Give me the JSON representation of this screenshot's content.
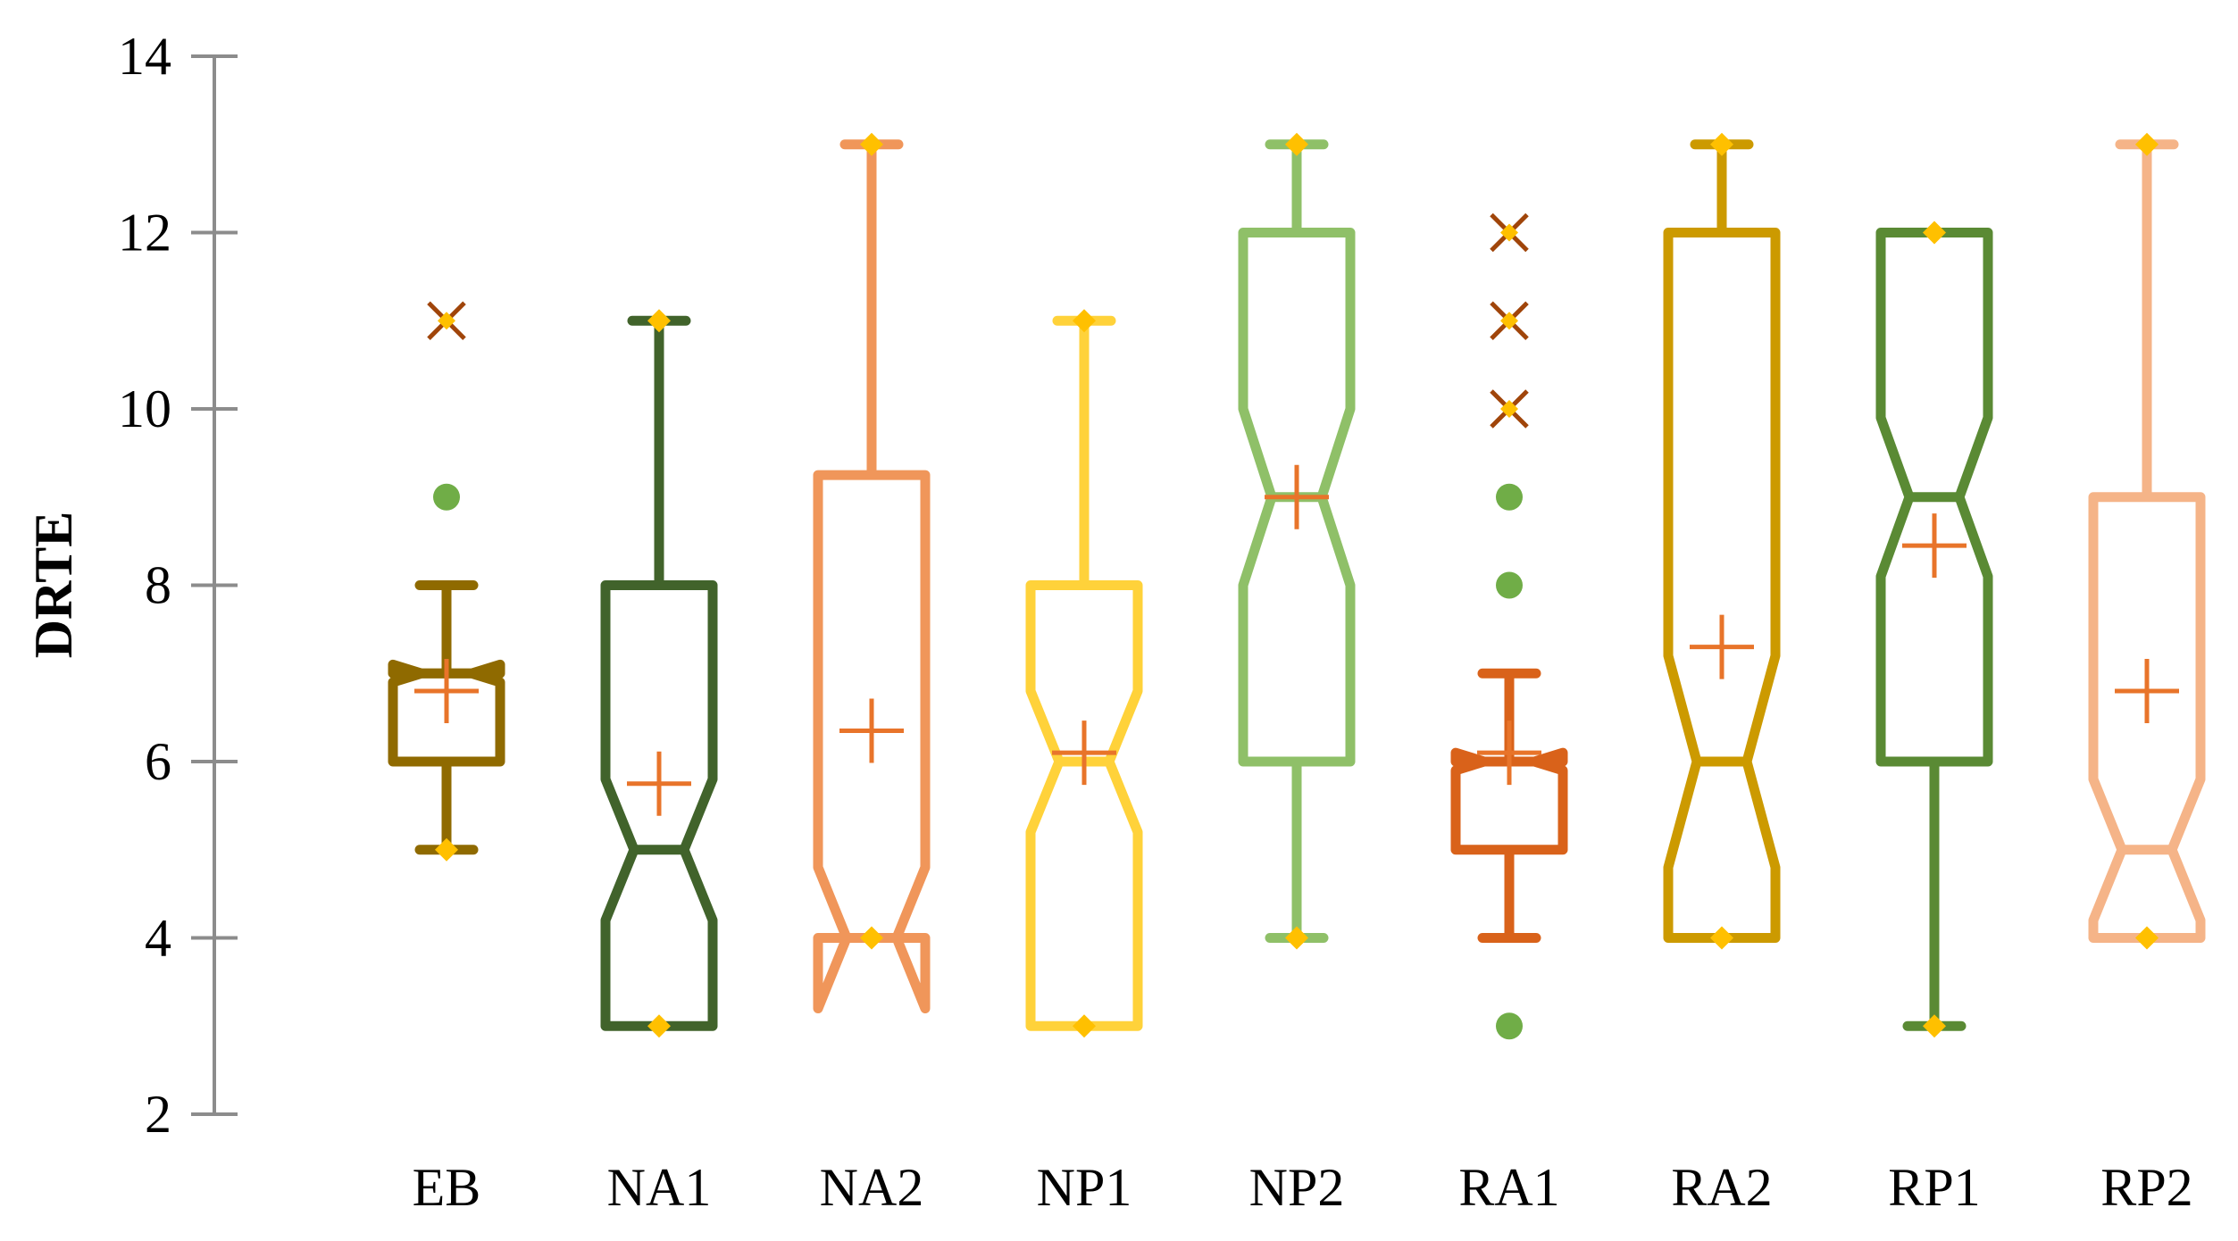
{
  "chart_data": {
    "type": "box",
    "title": "",
    "xlabel": "",
    "ylabel": "DRTE",
    "ylim": [
      2,
      14
    ],
    "yticks": [
      2,
      4,
      6,
      8,
      10,
      12,
      14
    ],
    "grid": false,
    "legend": "none",
    "mean_color": "#E8742A",
    "extreme_marker_color": "#FFC000",
    "outlier_x_color": "#A0450A",
    "outlier_dot_color": "#70AD47",
    "categories": [
      "EB",
      "NA1",
      "NA2",
      "NP1",
      "NP2",
      "RA1",
      "RA2",
      "RP1",
      "RP2"
    ],
    "boxes": [
      {
        "name": "EB",
        "color": "#8F6A00",
        "min": 5,
        "q1": 6,
        "median": 7,
        "q3": 7,
        "max": 8,
        "mean": 6.8,
        "notch_low": 6.9,
        "notch_high": 7.1,
        "extremes": [
          5
        ],
        "outliers_x": [
          11
        ],
        "outliers_dot": [
          9
        ]
      },
      {
        "name": "NA1",
        "color": "#41632B",
        "min": 3,
        "q1": 3,
        "median": 5,
        "q3": 8,
        "max": 11,
        "mean": 5.75,
        "notch_low": 4.2,
        "notch_high": 5.8,
        "extremes": [
          3,
          11
        ],
        "outliers_x": [],
        "outliers_dot": []
      },
      {
        "name": "NA2",
        "color": "#F0965A",
        "min": 4,
        "q1": 4,
        "median": 4,
        "q3": 9.25,
        "max": 13,
        "mean": 6.35,
        "notch_low": 3.2,
        "notch_high": 4.8,
        "extremes": [
          4,
          13
        ],
        "outliers_x": [],
        "outliers_dot": []
      },
      {
        "name": "NP1",
        "color": "#FFD23A",
        "min": 3,
        "q1": 3,
        "median": 6,
        "q3": 8,
        "max": 11,
        "mean": 6.1,
        "notch_low": 5.2,
        "notch_high": 6.8,
        "extremes": [
          3,
          11
        ],
        "outliers_x": [],
        "outliers_dot": []
      },
      {
        "name": "NP2",
        "color": "#8FC068",
        "min": 4,
        "q1": 6,
        "median": 9,
        "q3": 12,
        "max": 13,
        "mean": 9.0,
        "notch_low": 8.0,
        "notch_high": 10.0,
        "extremes": [
          4,
          13
        ],
        "outliers_x": [],
        "outliers_dot": []
      },
      {
        "name": "RA1",
        "color": "#D9621A",
        "min": 4,
        "q1": 5,
        "median": 6,
        "q3": 6,
        "max": 7,
        "mean": 6.1,
        "notch_low": 5.9,
        "notch_high": 6.1,
        "extremes": [],
        "outliers_x": [
          10,
          11,
          12
        ],
        "outliers_dot": [
          3,
          8,
          9
        ]
      },
      {
        "name": "RA2",
        "color": "#CC9A00",
        "min": 4,
        "q1": 4,
        "median": 6,
        "q3": 12,
        "max": 13,
        "mean": 7.3,
        "notch_low": 4.8,
        "notch_high": 7.2,
        "extremes": [
          4,
          13
        ],
        "outliers_x": [],
        "outliers_dot": []
      },
      {
        "name": "RP1",
        "color": "#5A8A34",
        "min": 3,
        "q1": 6,
        "median": 9,
        "q3": 12,
        "max": 12,
        "mean": 8.45,
        "notch_low": 8.1,
        "notch_high": 9.9,
        "extremes": [
          3,
          12
        ],
        "outliers_x": [],
        "outliers_dot": []
      },
      {
        "name": "RP2",
        "color": "#F5B488",
        "min": 4,
        "q1": 4,
        "median": 5,
        "q3": 9,
        "max": 13,
        "mean": 6.8,
        "notch_low": 4.2,
        "notch_high": 5.8,
        "extremes": [
          4,
          13
        ],
        "outliers_x": [],
        "outliers_dot": []
      }
    ]
  }
}
